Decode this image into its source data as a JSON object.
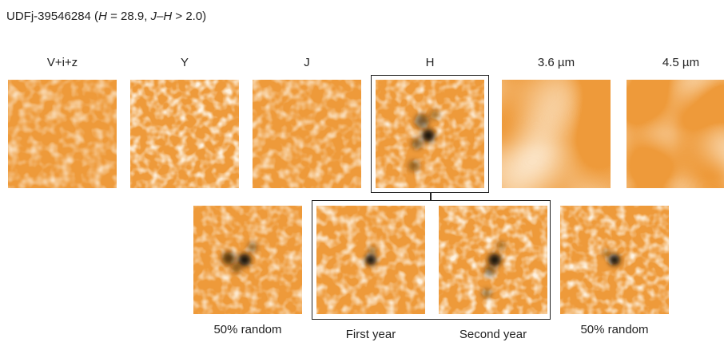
{
  "figure": {
    "title_prefix": "UDFj-39546284 (",
    "title_H": "H",
    "title_mid": " = 28.9, ",
    "title_JH": "J–H",
    "title_suffix": " > 2.0)"
  },
  "bands": [
    {
      "label": "V+i+z"
    },
    {
      "label": "Y"
    },
    {
      "label": "J"
    },
    {
      "label": "H"
    },
    {
      "label": "3.6 µm"
    },
    {
      "label": "4.5 µm"
    }
  ],
  "subsets": [
    {
      "label": "50% random"
    },
    {
      "label": "First year"
    },
    {
      "label": "Second year"
    },
    {
      "label": "50% random"
    }
  ],
  "colors": {
    "stamp_base": "#EE9A3A",
    "stamp_light": "#FCE2BE",
    "stamp_dark": "#1E1208",
    "frame": "#222222"
  }
}
